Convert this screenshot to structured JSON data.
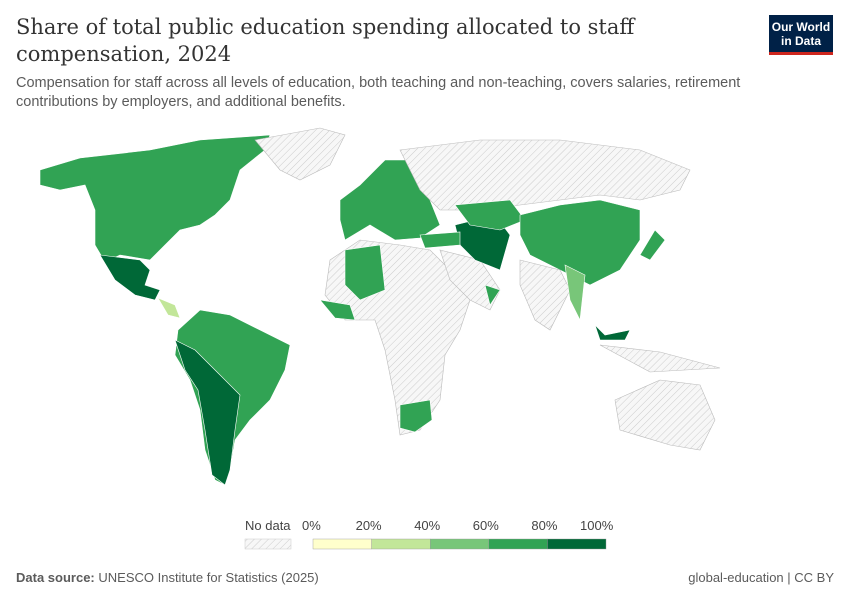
{
  "header": {
    "title": "Share of total public education spending allocated to staff compensation, 2024",
    "subtitle": "Compensation for staff across all levels of education, both teaching and non-teaching, covers salaries, retirement contributions by employers, and additional benefits.",
    "logo_text": "Our World in Data"
  },
  "legend": {
    "no_data_label": "No data",
    "ticks": [
      "0%",
      "20%",
      "40%",
      "60%",
      "80%",
      "100%"
    ],
    "bins": [
      {
        "range": "0-20%",
        "color": "#ffffcc"
      },
      {
        "range": "20-40%",
        "color": "#c2e699"
      },
      {
        "range": "40-60%",
        "color": "#78c679"
      },
      {
        "range": "60-80%",
        "color": "#31a354"
      },
      {
        "range": "80-100%",
        "color": "#006837"
      }
    ],
    "no_data_color": "#eeeeee"
  },
  "chart_data": {
    "type": "choropleth",
    "title": "Share of total public education spending allocated to staff compensation, 2024",
    "regions": [
      {
        "name": "North America",
        "bin": "60-80%"
      },
      {
        "name": "Greenland",
        "bin": "no data"
      },
      {
        "name": "Mexico",
        "bin": "80-100%"
      },
      {
        "name": "Central America",
        "bin": "20-40%"
      },
      {
        "name": "South America",
        "bin": "60-80%"
      },
      {
        "name": "Peru, Bolivia, Argentina",
        "bin": "80-100%"
      },
      {
        "name": "Europe",
        "bin": "60-80%"
      },
      {
        "name": "Russia",
        "bin": "no data"
      },
      {
        "name": "Africa",
        "bin": "no data"
      },
      {
        "name": "Algeria",
        "bin": "60-80%"
      },
      {
        "name": "West Africa",
        "bin": "60-80%"
      },
      {
        "name": "South Africa",
        "bin": "60-80%"
      },
      {
        "name": "Middle East",
        "bin": "no data"
      },
      {
        "name": "Oman",
        "bin": "60-80%"
      },
      {
        "name": "Iran",
        "bin": "80-100%"
      },
      {
        "name": "Kazakhstan",
        "bin": "60-80%"
      },
      {
        "name": "China",
        "bin": "60-80%"
      },
      {
        "name": "India",
        "bin": "no data"
      },
      {
        "name": "Myanmar",
        "bin": "40-60%"
      },
      {
        "name": "Japan",
        "bin": "60-80%"
      },
      {
        "name": "Malaysia",
        "bin": "80-100%"
      },
      {
        "name": "Australia",
        "bin": "no data"
      },
      {
        "name": "Indonesia",
        "bin": "no data"
      },
      {
        "name": "Turkey",
        "bin": "60-80%"
      }
    ]
  },
  "footer": {
    "source_label": "Data source:",
    "source": "UNESCO Institute for Statistics (2025)",
    "license": "global-education | CC BY"
  }
}
